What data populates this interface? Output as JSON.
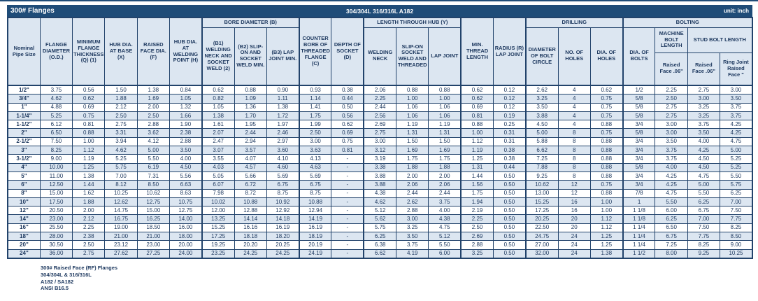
{
  "title_bar": {
    "title": "300# Flanges",
    "material": "304/304L 316/316L A182",
    "unit": "unit: inch"
  },
  "colors": {
    "navy_bar": "#1F4C78",
    "border": "#22436B",
    "header_fill": "#DCE6F1",
    "row_alt_fill": "#DCE6F1",
    "row_fill": "#FFFFFF",
    "text": "#1F3A60",
    "title_text": "#FFFFFF"
  },
  "table": {
    "column_groups": {
      "bore": "BORE DIAMETER (B)",
      "length_through_hub": "LENGTH THROUGH HUB (Y)",
      "drilling": "DRILLING",
      "bolting": "BOLTING"
    },
    "headers": {
      "nominal_pipe_size": "Nominal Pipe Size",
      "flange_diameter": "FLANGE DIAMETER (O.D.)",
      "min_flange_thickness": "MINIMUM FLANGE THICKNESS (Q) (1)",
      "hub_dia_at_base": "HUB DIA. AT BASE (X)",
      "raised_face_dia": "RAISED FACE DIA. (F)",
      "hub_dia_at_welding_point": "HUB DIA. AT WELDING POINT (H)",
      "b1": "(B1) WELDING NECK AND SOCKET WELD (2)",
      "b2": "(B2) SLIP-ON AND SOCKET WELD MIN.",
      "b3": "(B3) LAP JOINT MIN.",
      "counter_bore": "COUNTER BORE OF THREADED FLANGE (C)",
      "depth_of_socket": "DEPTH OF SOCKET (D)",
      "welding_neck": "WELDING NECK",
      "slip_on": "SLIP-ON SOCKET WELD AND THREADED",
      "lap_joint": "LAP JOINT",
      "min_thread_length": "MIN. THREAD LENGTH",
      "radius_lap_joint": "RADIUS (R) LAP JOINT",
      "bolt_circle_diameter": "DIAMETER OF BOLT CIRCLE",
      "no_of_holes": "NO. OF HOLES",
      "dia_of_holes": "DIA. OF HOLES",
      "dia_of_bolts": "DIA. OF BOLTS",
      "machine_bolt_length": "MACHINE BOLT LENGTH",
      "stud_bolt_length": "STUD BOLT LENGTH",
      "machine_raised_face": "Raised Face .06\"",
      "stud_raised_face": "Raised Face .06\"",
      "stud_ring_joint": "Ring Joint Raised Face \""
    },
    "rows": [
      [
        "1/2\"",
        "3.75",
        "0.56",
        "1.50",
        "1.38",
        "0.84",
        "0.62",
        "0.88",
        "0.90",
        "0.93",
        "0.38",
        "2.06",
        "0.88",
        "0.88",
        "0.62",
        "0.12",
        "2.62",
        "4",
        "0.62",
        "1/2",
        "2.25",
        "2.75",
        "3.00"
      ],
      [
        "3/4\"",
        "4.62",
        "0.62",
        "1.88",
        "1.69",
        "1.05",
        "0.82",
        "1.09",
        "1.11",
        "1.14",
        "0.44",
        "2.25",
        "1.00",
        "1.00",
        "0.62",
        "0.12",
        "3.25",
        "4",
        "0.75",
        "5/8",
        "2.50",
        "3.00",
        "3.50"
      ],
      [
        "1\"",
        "4.88",
        "0.69",
        "2.12",
        "2.00",
        "1.32",
        "1.05",
        "1.36",
        "1.38",
        "1.41",
        "0.50",
        "2.44",
        "1.06",
        "1.06",
        "0.69",
        "0.12",
        "3.50",
        "4",
        "0.75",
        "5/8",
        "2.75",
        "3.25",
        "3.75"
      ],
      [
        "1-1/4\"",
        "5.25",
        "0.75",
        "2.50",
        "2.50",
        "1.66",
        "1.38",
        "1.70",
        "1.72",
        "1.75",
        "0.56",
        "2.56",
        "1.06",
        "1.06",
        "0.81",
        "0.19",
        "3.88",
        "4",
        "0.75",
        "5/8",
        "2.75",
        "3.25",
        "3.75"
      ],
      [
        "1-1/2\"",
        "6.12",
        "0.81",
        "2.75",
        "2.88",
        "1.90",
        "1.61",
        "1.95",
        "1.97",
        "1.99",
        "0.62",
        "2.69",
        "1.19",
        "1.19",
        "0.88",
        "0.25",
        "4.50",
        "4",
        "0.88",
        "3/4",
        "3.00",
        "3.75",
        "4.25"
      ],
      [
        "2\"",
        "6.50",
        "0.88",
        "3.31",
        "3.62",
        "2.38",
        "2.07",
        "2.44",
        "2.46",
        "2.50",
        "0.69",
        "2.75",
        "1.31",
        "1.31",
        "1.00",
        "0.31",
        "5.00",
        "8",
        "0.75",
        "5/8",
        "3.00",
        "3.50",
        "4.25"
      ],
      [
        "2-1/2\"",
        "7.50",
        "1.00",
        "3.94",
        "4.12",
        "2.88",
        "2.47",
        "2.94",
        "2.97",
        "3.00",
        "0.75",
        "3.00",
        "1.50",
        "1.50",
        "1.12",
        "0.31",
        "5.88",
        "8",
        "0.88",
        "3/4",
        "3.50",
        "4.00",
        "4.75"
      ],
      [
        "3\"",
        "8.25",
        "1.12",
        "4.62",
        "5.00",
        "3.50",
        "3.07",
        "3.57",
        "3.60",
        "3.63",
        "0.81",
        "3.12",
        "1.69",
        "1.69",
        "1.19",
        "0.38",
        "6.62",
        "8",
        "0.88",
        "3/4",
        "3.75",
        "4.25",
        "5.00"
      ],
      [
        "3-1/2\"",
        "9.00",
        "1.19",
        "5.25",
        "5.50",
        "4.00",
        "3.55",
        "4.07",
        "4.10",
        "4.13",
        "-",
        "3.19",
        "1.75",
        "1.75",
        "1.25",
        "0.38",
        "7.25",
        "8",
        "0.88",
        "3/4",
        "3.75",
        "4.50",
        "5.25"
      ],
      [
        "4\"",
        "10.00",
        "1.25",
        "5.75",
        "6.19",
        "4.50",
        "4.03",
        "4.57",
        "4.60",
        "4.63",
        "-",
        "3.38",
        "1.88",
        "1.88",
        "1.31",
        "0.44",
        "7.88",
        "8",
        "0.88",
        "5/8",
        "4.00",
        "4.50",
        "5.25"
      ],
      [
        "5\"",
        "11.00",
        "1.38",
        "7.00",
        "7.31",
        "5.56",
        "5.05",
        "5.66",
        "5.69",
        "5.69",
        "-",
        "3.88",
        "2.00",
        "2.00",
        "1.44",
        "0.50",
        "9.25",
        "8",
        "0.88",
        "3/4",
        "4.25",
        "4.75",
        "5.50"
      ],
      [
        "6\"",
        "12.50",
        "1.44",
        "8.12",
        "8.50",
        "6.63",
        "6.07",
        "6.72",
        "6.75",
        "6.75",
        "-",
        "3.88",
        "2.06",
        "2.06",
        "1.56",
        "0.50",
        "10.62",
        "12",
        "0.75",
        "3/4",
        "4.25",
        "5.00",
        "5.75"
      ],
      [
        "8\"",
        "15.00",
        "1.62",
        "10.25",
        "10.62",
        "8.63",
        "7.98",
        "8.72",
        "8.75",
        "8.75",
        "-",
        "4.38",
        "2.44",
        "2.44",
        "1.75",
        "0.50",
        "13.00",
        "12",
        "0.88",
        "7/8",
        "4.75",
        "5.50",
        "6.25"
      ],
      [
        "10\"",
        "17.50",
        "1.88",
        "12.62",
        "12.75",
        "10.75",
        "10.02",
        "10.88",
        "10.92",
        "10.88",
        "-",
        "4.62",
        "2.62",
        "3.75",
        "1.94",
        "0.50",
        "15.25",
        "16",
        "1.00",
        "1",
        "5.50",
        "6.25",
        "7.00"
      ],
      [
        "12\"",
        "20.50",
        "2.00",
        "14.75",
        "15.00",
        "12.75",
        "12.00",
        "12.88",
        "12.92",
        "12.94",
        "-",
        "5.12",
        "2.88",
        "4.00",
        "2.19",
        "0.50",
        "17.25",
        "16",
        "1.00",
        "1 1/8",
        "6.00",
        "6.75",
        "7.50"
      ],
      [
        "14\"",
        "23.00",
        "2.12",
        "16.75",
        "16.25",
        "14.00",
        "13.25",
        "14.14",
        "14.18",
        "14.19",
        "-",
        "5.62",
        "3.00",
        "4.38",
        "2.25",
        "0.50",
        "20.25",
        "20",
        "1.12",
        "1 1/8",
        "6.25",
        "7.00",
        "7.75"
      ],
      [
        "16\"",
        "25.50",
        "2.25",
        "19.00",
        "18.50",
        "16.00",
        "15.25",
        "16.16",
        "16.19",
        "16.19",
        "-",
        "5.75",
        "3.25",
        "4.75",
        "2.50",
        "0.50",
        "22.50",
        "20",
        "1.12",
        "1 1/4",
        "6.50",
        "7.50",
        "8.25"
      ],
      [
        "18\"",
        "28.00",
        "2.38",
        "21.00",
        "21.00",
        "18.00",
        "17.25",
        "18.18",
        "18.20",
        "18.19",
        "-",
        "6.25",
        "3.50",
        "5.12",
        "2.69",
        "0.50",
        "24.75",
        "24",
        "1.25",
        "1 1/4",
        "6.75",
        "7.75",
        "8.50"
      ],
      [
        "20\"",
        "30.50",
        "2.50",
        "23.12",
        "23.00",
        "20.00",
        "19.25",
        "20.20",
        "20.25",
        "20.19",
        "-",
        "6.38",
        "3.75",
        "5.50",
        "2.88",
        "0.50",
        "27.00",
        "24",
        "1.25",
        "1 1/4",
        "7.25",
        "8.25",
        "9.00"
      ],
      [
        "24\"",
        "36.00",
        "2.75",
        "27.62",
        "27.25",
        "24.00",
        "23.25",
        "24.25",
        "24.25",
        "24.19",
        "-",
        "6.62",
        "4.19",
        "6.00",
        "3.25",
        "0.50",
        "32.00",
        "24",
        "1.38",
        "1 1/2",
        "8.00",
        "9.25",
        "10.25"
      ]
    ]
  },
  "footer": {
    "lines": [
      "300# Raised Face (RF) Flanges",
      "304/304L & 316/316L",
      "A182 / SA182",
      "ANSI B16.5"
    ]
  }
}
